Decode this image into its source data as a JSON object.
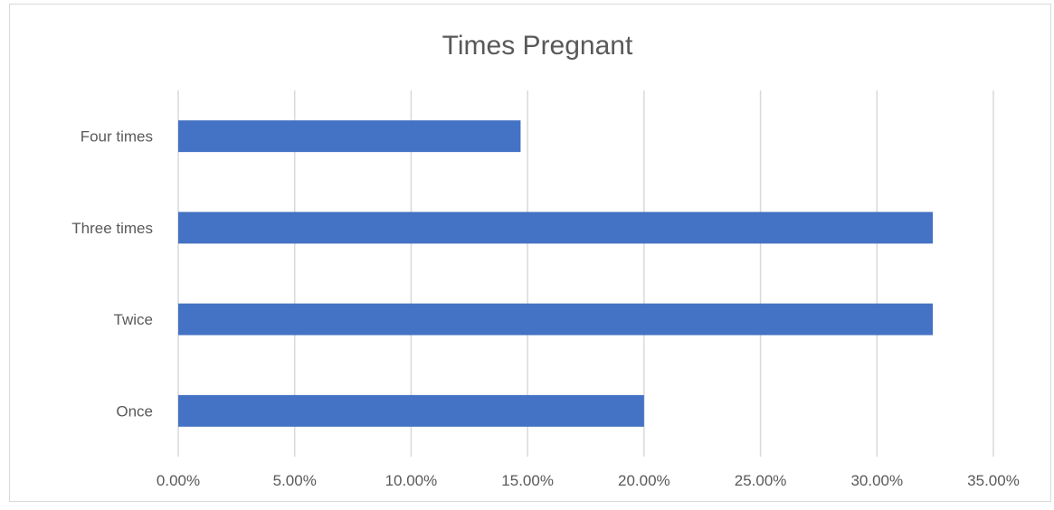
{
  "chart_data": {
    "type": "bar",
    "orientation": "horizontal",
    "title": "Times Pregnant",
    "categories": [
      "Once",
      "Twice",
      "Three times",
      "Four times"
    ],
    "values": [
      20.0,
      32.4,
      32.4,
      14.7
    ],
    "xlim": [
      0,
      35
    ],
    "x_ticks": [
      "0.00%",
      "5.00%",
      "10.00%",
      "15.00%",
      "20.00%",
      "25.00%",
      "30.00%",
      "35.00%"
    ],
    "grid": true,
    "legend": "none",
    "bar_color": "#4472C4"
  }
}
